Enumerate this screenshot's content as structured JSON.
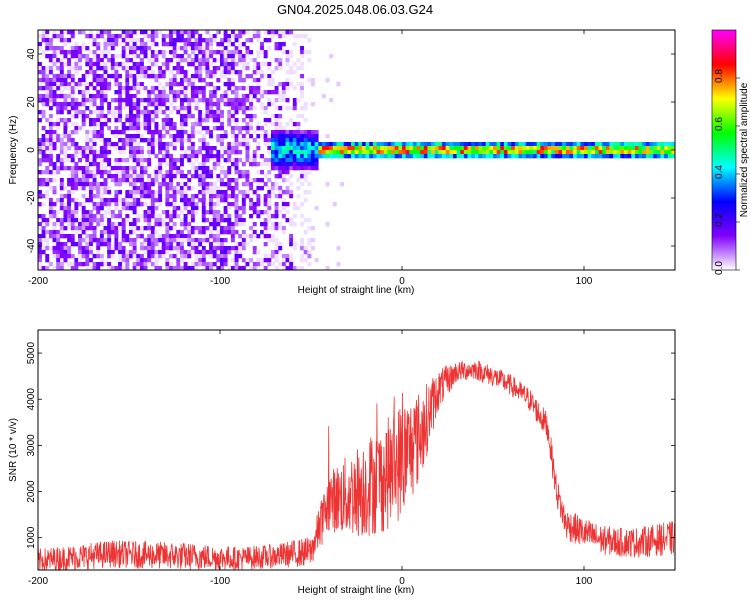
{
  "title": "GN04.2025.048.06.03.G24",
  "chart_data": [
    {
      "type": "heatmap",
      "xlabel": "Height of straight line (km)",
      "ylabel": "Frequency (Hz)",
      "xlim": [
        -200,
        150
      ],
      "ylim": [
        -50,
        50
      ],
      "xticks": [
        -200,
        -100,
        0,
        100
      ],
      "yticks": [
        -40,
        -20,
        0,
        20,
        40
      ],
      "grid": false,
      "colorbar": {
        "label": "Normalized spectral amplitude",
        "range": [
          0.0,
          1.0
        ],
        "ticks": [
          0.0,
          0.2,
          0.4,
          0.6,
          0.8
        ],
        "tick_labels": [
          "0.0",
          "0.2",
          "0.4",
          "0.6",
          "0.8"
        ],
        "colormap": [
          "#ffffff",
          "#8000ff",
          "#0000ff",
          "#00ffff",
          "#00ff00",
          "#ffff00",
          "#ff0000",
          "#ff00ff"
        ]
      },
      "noise_region_x": [
        -200,
        -50
      ],
      "signal_band": {
        "x_start": -72,
        "x_end": 150,
        "frequency_hz": 0,
        "peak_amplitude": 0.95
      }
    },
    {
      "type": "line",
      "xlabel": "Height of straight line (km)",
      "ylabel": "SNR (10 * v/v)",
      "xlim": [
        -200,
        150
      ],
      "ylim": [
        300,
        5500
      ],
      "xticks": [
        -200,
        -100,
        0,
        100
      ],
      "yticks": [
        1000,
        2000,
        3000,
        4000,
        5000
      ],
      "grid": false,
      "line_color": "#ee3333",
      "envelope_x": [
        -200,
        -160,
        -120,
        -90,
        -70,
        -50,
        -40,
        -30,
        -20,
        -10,
        0,
        10,
        20,
        30,
        40,
        50,
        60,
        70,
        80,
        85,
        90,
        100,
        110,
        120,
        130,
        140,
        150
      ],
      "envelope_mid": [
        500,
        650,
        600,
        550,
        600,
        700,
        1800,
        1900,
        2100,
        2300,
        2700,
        3200,
        4200,
        4600,
        4650,
        4500,
        4300,
        4000,
        3400,
        2000,
        1300,
        1100,
        950,
        900,
        900,
        950,
        1000
      ],
      "noise_amp": [
        260,
        300,
        300,
        260,
        260,
        330,
        650,
        900,
        1100,
        1200,
        1300,
        1000,
        450,
        230,
        220,
        230,
        230,
        250,
        300,
        320,
        350,
        330,
        320,
        320,
        330,
        350,
        380
      ]
    }
  ]
}
